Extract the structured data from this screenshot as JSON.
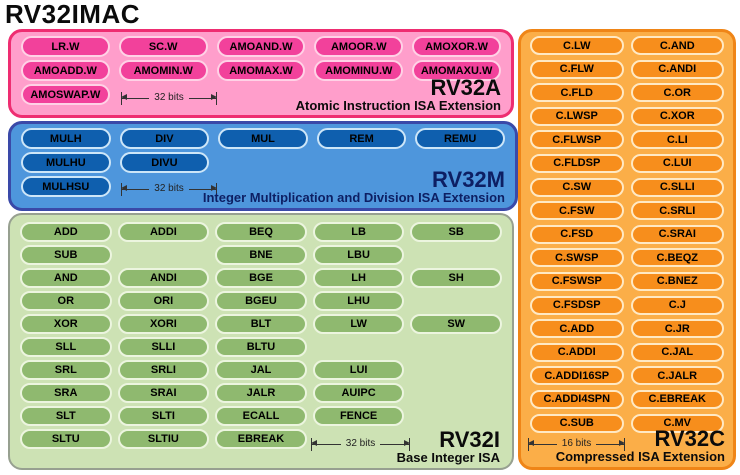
{
  "title": "RV32IMAC",
  "colors": {
    "rv32a_bg": "#ff9ecb",
    "rv32a_border": "#ee2d71",
    "rv32a_pill": "#f2419b",
    "rv32a_pill_border": "#ffd2e6",
    "rv32m_bg": "#4e96dc",
    "rv32m_border": "#3a49a8",
    "rv32m_pill": "#0f5fae",
    "rv32m_pill_border": "#cde6f8",
    "rv32m_label": "#0d1f63",
    "rv32i_bg": "#cde2b4",
    "rv32i_border": "#97a090",
    "rv32i_pill": "#8fb96f",
    "rv32i_pill_border": "#ecf5df",
    "rv32c_bg": "#fbae48",
    "rv32c_border": "#ef8517",
    "rv32c_pill": "#f78e1c",
    "rv32c_pill_border": "#ffe9c4"
  },
  "regions": {
    "rv32a": {
      "name": "RV32A",
      "subtitle": "Atomic Instruction ISA Extension",
      "width_label": "32 bits",
      "rows": [
        [
          "LR.W",
          "SC.W",
          "AMOAND.W",
          "AMOOR.W",
          "AMOXOR.W"
        ],
        [
          "AMOADD.W",
          "AMOMIN.W",
          "AMOMAX.W",
          "AMOMINU.W",
          "AMOMAXU.W"
        ],
        [
          "AMOSWAP.W"
        ]
      ]
    },
    "rv32m": {
      "name": "RV32M",
      "subtitle": "Integer Multiplication and Division ISA Extension",
      "width_label": "32 bits",
      "rows": [
        [
          "MULH",
          "DIV",
          "MUL",
          "REM",
          "REMU"
        ],
        [
          "MULHU",
          "DIVU"
        ],
        [
          "MULHSU"
        ]
      ]
    },
    "rv32i": {
      "name": "RV32I",
      "subtitle": "Base Integer ISA",
      "width_label": "32 bits",
      "rows": [
        [
          "ADD",
          "ADDI",
          "BEQ",
          "LB",
          "SB"
        ],
        [
          "SUB",
          null,
          "BNE",
          "LBU",
          null
        ],
        [
          "AND",
          "ANDI",
          "BGE",
          "LH",
          "SH"
        ],
        [
          "OR",
          "ORI",
          "BGEU",
          "LHU",
          null
        ],
        [
          "XOR",
          "XORI",
          "BLT",
          "LW",
          "SW"
        ],
        [
          "SLL",
          "SLLI",
          "BLTU",
          null,
          null
        ],
        [
          "SRL",
          "SRLI",
          "JAL",
          "LUI",
          null
        ],
        [
          "SRA",
          "SRAI",
          "JALR",
          "AUIPC",
          null
        ],
        [
          "SLT",
          "SLTI",
          "ECALL",
          "FENCE",
          null
        ],
        [
          "SLTU",
          "SLTIU",
          "EBREAK",
          null,
          null
        ]
      ]
    },
    "rv32c": {
      "name": "RV32C",
      "subtitle": "Compressed ISA Extension",
      "width_label": "16 bits",
      "rows": [
        [
          "C.LW",
          "C.AND"
        ],
        [
          "C.FLW",
          "C.ANDI"
        ],
        [
          "C.FLD",
          "C.OR"
        ],
        [
          "C.LWSP",
          "C.XOR"
        ],
        [
          "C.FLWSP",
          "C.LI"
        ],
        [
          "C.FLDSP",
          "C.LUI"
        ],
        [
          "C.SW",
          "C.SLLI"
        ],
        [
          "C.FSW",
          "C.SRLI"
        ],
        [
          "C.FSD",
          "C.SRAI"
        ],
        [
          "C.SWSP",
          "C.BEQZ"
        ],
        [
          "C.FSWSP",
          "C.BNEZ"
        ],
        [
          "C.FSDSP",
          "C.J"
        ],
        [
          "C.ADD",
          "C.JR"
        ],
        [
          "C.ADDI",
          "C.JAL"
        ],
        [
          "C.ADDI16SP",
          "C.JALR"
        ],
        [
          "C.ADDI4SPN",
          "C.EBREAK"
        ],
        [
          "C.SUB",
          "C.MV"
        ]
      ]
    }
  }
}
